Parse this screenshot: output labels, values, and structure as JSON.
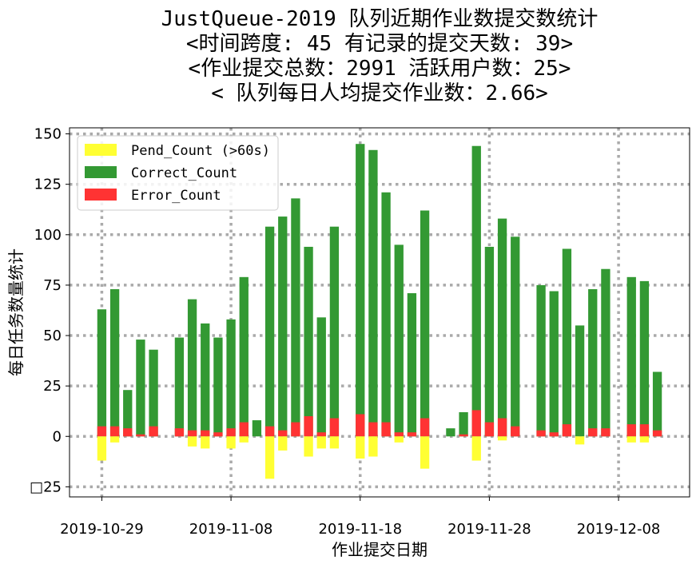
{
  "chart_data": {
    "type": "bar",
    "stacked": true,
    "title_lines": [
      "JustQueue-2019 队列近期作业数提交数统计",
      "<时间跨度: 45  有记录的提交天数: 39>",
      "<作业提交总数：2991 活跃用户数：25>",
      "< 队列每日人均提交作业数：2.66>"
    ],
    "xlabel": "作业提交日期",
    "ylabel": "每日任务数量统计",
    "ylim": [
      -30,
      153
    ],
    "yticks": [
      -25,
      0,
      25,
      50,
      75,
      100,
      125,
      150
    ],
    "ytick_labels": [
      "□25",
      "0",
      "25",
      "50",
      "75",
      "100",
      "125",
      "150"
    ],
    "xlim_days": [
      -2.5,
      45.5
    ],
    "xticks": [
      {
        "day": 0,
        "label": "2019-10-29"
      },
      {
        "day": 10,
        "label": "2019-11-08"
      },
      {
        "day": 20,
        "label": "2019-11-18"
      },
      {
        "day": 30,
        "label": "2019-11-28"
      },
      {
        "day": 40,
        "label": "2019-12-08"
      }
    ],
    "grid": true,
    "legend_position": "upper-left",
    "series": [
      {
        "name": "Pend_Count (>60s)",
        "color": "#ffff33"
      },
      {
        "name": "Correct_Count",
        "color": "#339933"
      },
      {
        "name": "Error_Count",
        "color": "#ff3333"
      }
    ],
    "days": [
      {
        "date": "2019-10-29",
        "day": 0,
        "pend": 12,
        "correct": 63,
        "error": 5
      },
      {
        "date": "2019-10-30",
        "day": 1,
        "pend": 3,
        "correct": 73,
        "error": 5
      },
      {
        "date": "2019-10-31",
        "day": 2,
        "pend": 0,
        "correct": 23,
        "error": 4
      },
      {
        "date": "2019-11-01",
        "day": 3,
        "pend": 0,
        "correct": 48,
        "error": 1
      },
      {
        "date": "2019-11-02",
        "day": 4,
        "pend": 0,
        "correct": 43,
        "error": 5
      },
      {
        "date": "2019-11-04",
        "day": 6,
        "pend": 0,
        "correct": 49,
        "error": 4
      },
      {
        "date": "2019-11-05",
        "day": 7,
        "pend": 5,
        "correct": 68,
        "error": 3
      },
      {
        "date": "2019-11-06",
        "day": 8,
        "pend": 6,
        "correct": 56,
        "error": 3
      },
      {
        "date": "2019-11-07",
        "day": 9,
        "pend": 0,
        "correct": 49,
        "error": 2
      },
      {
        "date": "2019-11-08",
        "day": 10,
        "pend": 6,
        "correct": 58,
        "error": 4
      },
      {
        "date": "2019-11-09",
        "day": 11,
        "pend": 3,
        "correct": 79,
        "error": 7
      },
      {
        "date": "2019-11-10",
        "day": 12,
        "pend": 0,
        "correct": 8,
        "error": 0
      },
      {
        "date": "2019-11-11",
        "day": 13,
        "pend": 21,
        "correct": 104,
        "error": 5
      },
      {
        "date": "2019-11-12",
        "day": 14,
        "pend": 7,
        "correct": 109,
        "error": 3
      },
      {
        "date": "2019-11-13",
        "day": 15,
        "pend": 0,
        "correct": 118,
        "error": 7
      },
      {
        "date": "2019-11-14",
        "day": 16,
        "pend": 10,
        "correct": 94,
        "error": 10
      },
      {
        "date": "2019-11-15",
        "day": 17,
        "pend": 6,
        "correct": 59,
        "error": 2
      },
      {
        "date": "2019-11-16",
        "day": 18,
        "pend": 6,
        "correct": 104,
        "error": 9
      },
      {
        "date": "2019-11-18",
        "day": 20,
        "pend": 11,
        "correct": 145,
        "error": 11
      },
      {
        "date": "2019-11-19",
        "day": 21,
        "pend": 10,
        "correct": 142,
        "error": 7
      },
      {
        "date": "2019-11-20",
        "day": 22,
        "pend": 0,
        "correct": 121,
        "error": 7
      },
      {
        "date": "2019-11-21",
        "day": 23,
        "pend": 3,
        "correct": 95,
        "error": 2
      },
      {
        "date": "2019-11-22",
        "day": 24,
        "pend": 0,
        "correct": 71,
        "error": 2
      },
      {
        "date": "2019-11-23",
        "day": 25,
        "pend": 16,
        "correct": 112,
        "error": 9
      },
      {
        "date": "2019-11-25",
        "day": 27,
        "pend": 0,
        "correct": 4,
        "error": 0
      },
      {
        "date": "2019-11-26",
        "day": 28,
        "pend": 0,
        "correct": 12,
        "error": 1
      },
      {
        "date": "2019-11-27",
        "day": 29,
        "pend": 12,
        "correct": 144,
        "error": 13
      },
      {
        "date": "2019-11-28",
        "day": 30,
        "pend": 0,
        "correct": 94,
        "error": 7
      },
      {
        "date": "2019-11-29",
        "day": 31,
        "pend": 2,
        "correct": 108,
        "error": 9
      },
      {
        "date": "2019-11-30",
        "day": 32,
        "pend": 0,
        "correct": 99,
        "error": 5
      },
      {
        "date": "2019-12-02",
        "day": 34,
        "pend": 0,
        "correct": 75,
        "error": 3
      },
      {
        "date": "2019-12-03",
        "day": 35,
        "pend": 0,
        "correct": 72,
        "error": 2
      },
      {
        "date": "2019-12-04",
        "day": 36,
        "pend": 0,
        "correct": 93,
        "error": 6
      },
      {
        "date": "2019-12-05",
        "day": 37,
        "pend": 4,
        "correct": 55,
        "error": 0
      },
      {
        "date": "2019-12-06",
        "day": 38,
        "pend": 0,
        "correct": 73,
        "error": 4
      },
      {
        "date": "2019-12-07",
        "day": 39,
        "pend": 0,
        "correct": 83,
        "error": 4
      },
      {
        "date": "2019-12-09",
        "day": 41,
        "pend": 3,
        "correct": 79,
        "error": 6
      },
      {
        "date": "2019-12-10",
        "day": 42,
        "pend": 3,
        "correct": 77,
        "error": 6
      },
      {
        "date": "2019-12-11",
        "day": 43,
        "pend": 0,
        "correct": 32,
        "error": 3
      }
    ]
  }
}
